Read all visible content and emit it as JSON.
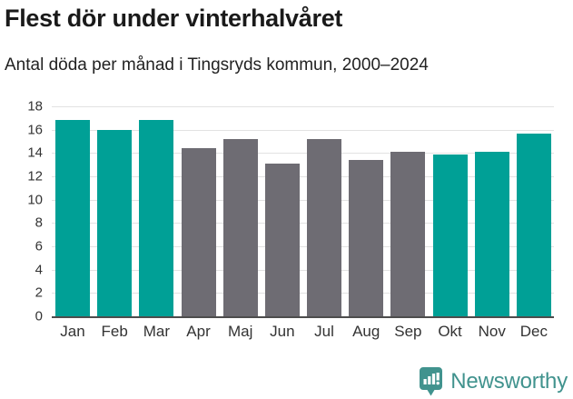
{
  "header": {
    "title": "Flest dör under vinterhalvåret",
    "subtitle": "Antal döda per månad i Tingsryds kommun, 2000–2024"
  },
  "chart_data": {
    "type": "bar",
    "title": "Flest dör under vinterhalvåret",
    "subtitle": "Antal döda per månad i Tingsryds kommun, 2000–2024",
    "categories": [
      "Jan",
      "Feb",
      "Mar",
      "Apr",
      "Maj",
      "Jun",
      "Jul",
      "Aug",
      "Sep",
      "Okt",
      "Nov",
      "Dec"
    ],
    "values": [
      16.8,
      16.0,
      16.8,
      14.4,
      15.2,
      13.1,
      15.2,
      13.4,
      14.1,
      13.9,
      14.1,
      15.7
    ],
    "bar_color_keys": [
      "teal",
      "teal",
      "teal",
      "gray",
      "gray",
      "gray",
      "gray",
      "gray",
      "gray",
      "teal",
      "teal",
      "teal"
    ],
    "colors": {
      "teal": "#00A096",
      "gray": "#6E6C73"
    },
    "xlabel": "",
    "ylabel": "",
    "ylim": [
      0,
      18
    ],
    "yticks": [
      0,
      2,
      4,
      6,
      8,
      10,
      12,
      14,
      16,
      18
    ],
    "grid": true,
    "legend": false
  },
  "footer": {
    "brand": "Newsworthy",
    "brand_color": "#41938E",
    "logo_icon": "bar-chart-speech-bubble-icon"
  }
}
